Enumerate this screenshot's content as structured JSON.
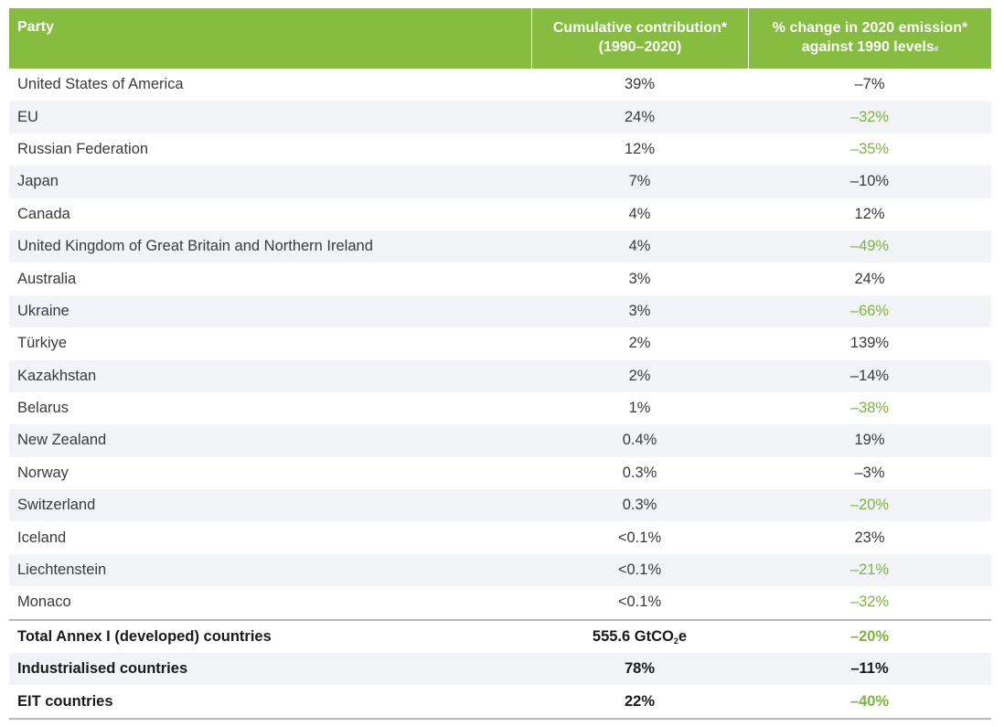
{
  "header": {
    "party": "Party",
    "cumulative_line1": "Cumulative contribution*",
    "cumulative_line2": "(1990–2020)",
    "change_line1": "% change in 2020 emission*",
    "change_line2": "against 1990 levels",
    "change_mark": "#"
  },
  "rows": [
    {
      "party": "United States of America",
      "cumulative": "39%",
      "change": "–7%",
      "reduced": false
    },
    {
      "party": "EU",
      "cumulative": "24%",
      "change": "–32%",
      "reduced": true
    },
    {
      "party": "Russian Federation",
      "cumulative": "12%",
      "change": "–35%",
      "reduced": true
    },
    {
      "party": "Japan",
      "cumulative": "7%",
      "change": "–10%",
      "reduced": false
    },
    {
      "party": "Canada",
      "cumulative": "4%",
      "change": "12%",
      "reduced": false
    },
    {
      "party": "United Kingdom of Great Britain and Northern Ireland",
      "cumulative": "4%",
      "change": "–49%",
      "reduced": true
    },
    {
      "party": "Australia",
      "cumulative": "3%",
      "change": "24%",
      "reduced": false
    },
    {
      "party": "Ukraine",
      "cumulative": "3%",
      "change": "–66%",
      "reduced": true
    },
    {
      "party": "Türkiye",
      "cumulative": "2%",
      "change": "139%",
      "reduced": false
    },
    {
      "party": "Kazakhstan",
      "cumulative": "2%",
      "change": "–14%",
      "reduced": false
    },
    {
      "party": "Belarus",
      "cumulative": "1%",
      "change": "–38%",
      "reduced": true
    },
    {
      "party": "New Zealand",
      "cumulative": "0.4%",
      "change": "19%",
      "reduced": false
    },
    {
      "party": "Norway",
      "cumulative": "0.3%",
      "change": "–3%",
      "reduced": false
    },
    {
      "party": "Switzerland",
      "cumulative": "0.3%",
      "change": "–20%",
      "reduced": true
    },
    {
      "party": "Iceland",
      "cumulative": "<0.1%",
      "change": "23%",
      "reduced": false
    },
    {
      "party": "Liechtenstein",
      "cumulative": "<0.1%",
      "change": "–21%",
      "reduced": true
    },
    {
      "party": "Monaco",
      "cumulative": "<0.1%",
      "change": "–32%",
      "reduced": true
    }
  ],
  "summary": {
    "total_label": "Total Annex I (developed) countries",
    "total_value_prefix": "555.6 GtCO",
    "total_value_sub": "2",
    "total_value_suffix": "e",
    "total_change": "–20%",
    "industrialised_label": "Industrialised countries",
    "industrialised_value": "78%",
    "industrialised_change": "–11%",
    "eit_label": "EIT countries",
    "eit_value": "22%",
    "eit_change": "–40%"
  },
  "colors": {
    "header_bg": "#86bc40",
    "reduction_text": "#7cb342",
    "alt_row_bg": "#f2f3f6"
  }
}
